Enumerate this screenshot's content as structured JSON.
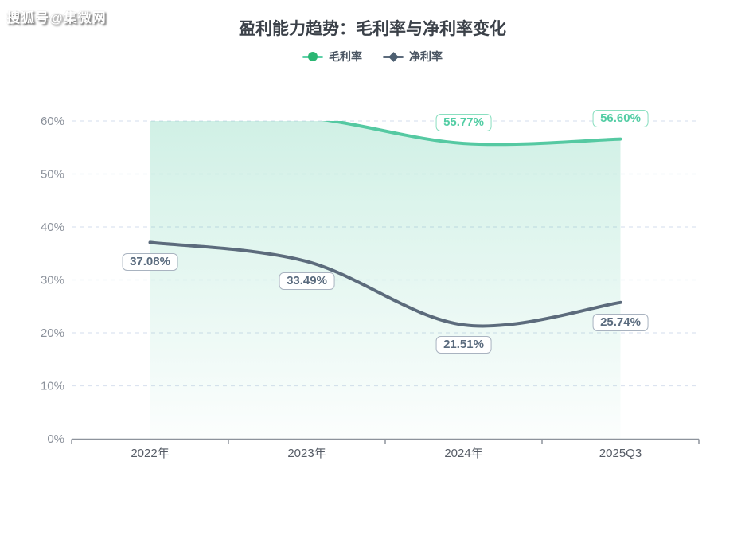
{
  "watermark": "搜狐号@集微网",
  "title": "盈利能力趋势：毛利率与净利率变化",
  "legend": [
    {
      "label": "毛利率",
      "marker": "circle",
      "shape_color": "#2bb673",
      "line_color": "#5fd0a8"
    },
    {
      "label": "净利率",
      "marker": "diamond",
      "shape_color": "#4e6072",
      "line_color": "#5c6b7c"
    }
  ],
  "chart_data": {
    "type": "line",
    "title": "盈利能力趋势：毛利率与净利率变化",
    "categories": [
      "2022年",
      "2023年",
      "2024年",
      "2025Q3"
    ],
    "series": [
      {
        "name": "毛利率",
        "values": [
          61.0,
          60.6,
          55.77,
          56.6
        ],
        "labels": [
          null,
          null,
          "55.77%",
          "56.60%"
        ],
        "clipped": [
          true,
          true,
          false,
          false
        ],
        "color": "#55c9a2",
        "area": true,
        "label_position": "above",
        "label_text_color": "#53cda4",
        "label_border_color": "#8adfc0"
      },
      {
        "name": "净利率",
        "values": [
          37.08,
          33.49,
          21.51,
          25.74
        ],
        "labels": [
          "37.08%",
          "33.49%",
          "21.51%",
          "25.74%"
        ],
        "clipped": [
          false,
          false,
          false,
          false
        ],
        "color": "#5c6b7c",
        "area": false,
        "label_position": "below",
        "label_text_color": "#5a6b7e",
        "label_border_color": "#a9b3c0"
      }
    ],
    "ylim": [
      0,
      60
    ],
    "yticks": [
      "0%",
      "10%",
      "20%",
      "30%",
      "40%",
      "50%",
      "60%"
    ],
    "grid": "horizontal dashed gridlines, solid bottom axis with ticks",
    "legend_position": "top",
    "note": "毛利率 values for 2022/2023 exceed the 60% axis max and are clipped at the top of the plot (no data labels shown)."
  },
  "colors": {
    "grid_line": "#dce3f0",
    "axis_line": "#8d939c",
    "area_fill_top": "rgba(85,201,162,0.28)",
    "area_fill_bottom": "rgba(85,201,162,0.02)",
    "title_text": "#3b4149",
    "y_tick_text": "#8b919b",
    "x_tick_text": "#565c66"
  }
}
